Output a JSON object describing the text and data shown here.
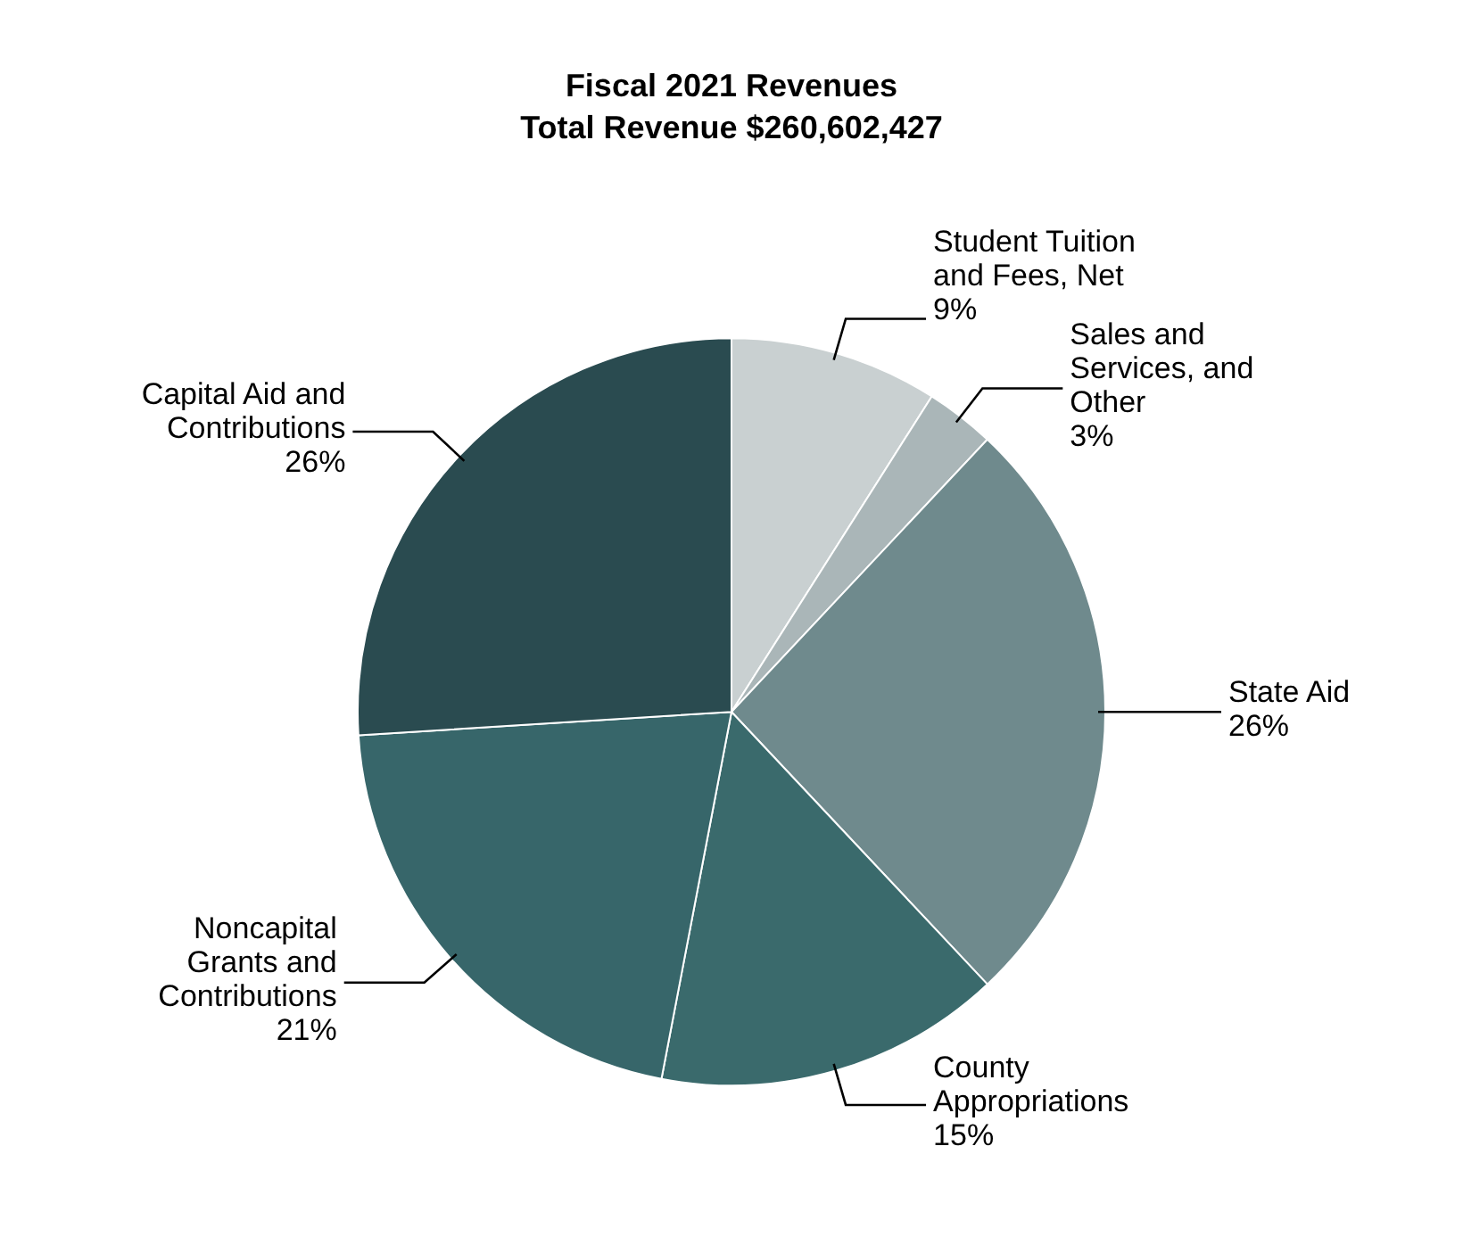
{
  "chart_data": {
    "type": "pie",
    "title": "Fiscal 2021 Revenues",
    "subtitle": "Total Revenue $260,602,427",
    "categories": [
      "Student Tuition and Fees, Net",
      "Sales and Services, and Other",
      "State Aid",
      "County Appropriations",
      "Noncapital Grants and Contributions",
      "Capital Aid and Contributions"
    ],
    "values": [
      9,
      3,
      26,
      15,
      21,
      26
    ],
    "value_labels": [
      "9%",
      "3%",
      "26%",
      "15%",
      "21%",
      "26%"
    ],
    "colors": [
      "#c9d0d1",
      "#aab6b8",
      "#6f8a8d",
      "#3a6a6c",
      "#37666a",
      "#2a4b50"
    ],
    "legend": false
  }
}
